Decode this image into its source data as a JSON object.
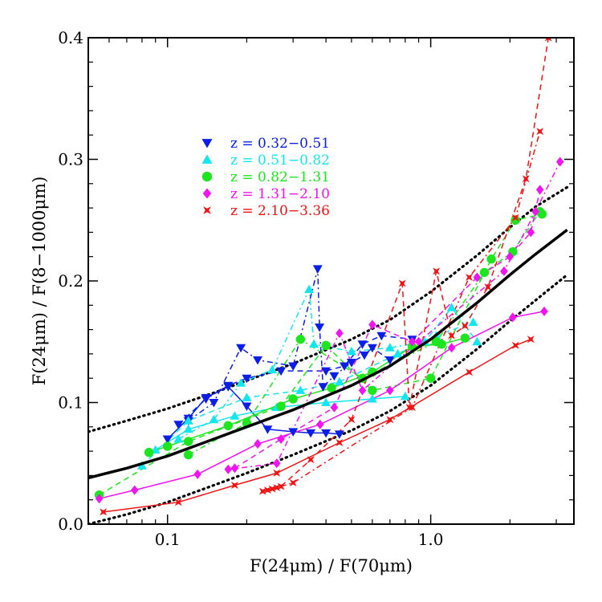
{
  "chart_data": {
    "type": "scatter",
    "xlabel": "F(24μm) / F(70μm)",
    "ylabel": "F(24μm) / F(8−1000μm)",
    "xscale": "log",
    "xlim": [
      0.05,
      3.5
    ],
    "ylim": [
      0.0,
      0.4
    ],
    "xticks": [
      {
        "value": 0.1,
        "label": "0.1"
      },
      {
        "value": 1.0,
        "label": "1.0"
      }
    ],
    "yticks": [
      {
        "value": 0.0,
        "label": "0.0"
      },
      {
        "value": 0.1,
        "label": "0.1"
      },
      {
        "value": 0.2,
        "label": "0.2"
      },
      {
        "value": 0.3,
        "label": "0.3"
      },
      {
        "value": 0.4,
        "label": "0.4"
      }
    ],
    "legend_placement": "upper-left",
    "series": [
      {
        "name": "z = 0.32−0.51",
        "color": "#0a1ee6",
        "marker": "triangle-down",
        "solid": [
          [
            0.1,
            0.07
          ],
          [
            0.12,
            0.087
          ],
          [
            0.14,
            0.104
          ],
          [
            0.17,
            0.113
          ],
          [
            0.2,
            0.097
          ],
          [
            0.24,
            0.078
          ],
          [
            0.3,
            0.076
          ],
          [
            0.35,
            0.075
          ],
          [
            0.4,
            0.075
          ],
          [
            0.45,
            0.074
          ]
        ],
        "dashed": [
          [
            0.11,
            0.082
          ],
          [
            0.14,
            0.103
          ],
          [
            0.17,
            0.114
          ],
          [
            0.2,
            0.12
          ],
          [
            0.27,
            0.126
          ],
          [
            0.4,
            0.126
          ],
          [
            0.47,
            0.13
          ],
          [
            0.55,
            0.148
          ],
          [
            0.65,
            0.155
          ],
          [
            0.85,
            0.152
          ]
        ],
        "dashdot": [
          [
            0.12,
            0.085
          ],
          [
            0.15,
            0.1
          ],
          [
            0.19,
            0.145
          ],
          [
            0.22,
            0.135
          ],
          [
            0.3,
            0.13
          ],
          [
            0.372,
            0.21
          ],
          [
            0.378,
            0.162
          ],
          [
            0.39,
            0.113
          ],
          [
            0.43,
            0.122
          ],
          [
            0.5,
            0.133
          ],
          [
            0.56,
            0.139
          ],
          [
            0.6,
            0.145
          ],
          [
            0.7,
            0.135
          ]
        ]
      },
      {
        "name": "z = 0.51−0.82",
        "color": "#14e6f0",
        "marker": "triangle-up",
        "solid": [
          [
            0.09,
            0.061
          ],
          [
            0.12,
            0.078
          ],
          [
            0.18,
            0.089
          ],
          [
            0.26,
            0.096
          ],
          [
            0.4,
            0.1
          ],
          [
            0.6,
            0.103
          ],
          [
            0.8,
            0.105
          ]
        ],
        "dashed": [
          [
            0.08,
            0.048
          ],
          [
            0.12,
            0.085
          ],
          [
            0.2,
            0.104
          ],
          [
            0.32,
            0.11
          ],
          [
            0.45,
            0.117
          ],
          [
            0.75,
            0.14
          ],
          [
            1.05,
            0.155
          ],
          [
            1.45,
            0.166
          ]
        ],
        "dashdot": [
          [
            0.11,
            0.07
          ],
          [
            0.15,
            0.086
          ],
          [
            0.19,
            0.116
          ],
          [
            0.25,
            0.127
          ],
          [
            0.345,
            0.193
          ],
          [
            0.36,
            0.148
          ],
          [
            0.5,
            0.142
          ],
          [
            0.7,
            0.145
          ],
          [
            0.95,
            0.15
          ],
          [
            1.2,
            0.178
          ],
          [
            1.5,
            0.15
          ]
        ]
      },
      {
        "name": "z = 0.82−1.31",
        "color": "#1ee61e",
        "marker": "circle",
        "solid": [
          [
            0.085,
            0.059
          ],
          [
            0.1,
            0.064
          ],
          [
            0.17,
            0.081
          ],
          [
            0.3,
            0.103
          ],
          [
            0.42,
            0.112
          ],
          [
            0.6,
            0.125
          ],
          [
            0.85,
            0.146
          ],
          [
            1.1,
            0.148
          ],
          [
            1.35,
            0.153
          ]
        ],
        "dashed": [
          [
            0.055,
            0.024
          ],
          [
            0.12,
            0.068
          ],
          [
            0.27,
            0.097
          ],
          [
            0.4,
            0.147
          ],
          [
            0.6,
            0.11
          ],
          [
            1.0,
            0.12
          ],
          [
            1.7,
            0.218
          ],
          [
            2.1,
            0.25
          ],
          [
            2.65,
            0.255
          ]
        ],
        "dashdot": [
          [
            0.12,
            0.057
          ],
          [
            0.2,
            0.083
          ],
          [
            0.32,
            0.152
          ],
          [
            0.55,
            0.12
          ],
          [
            1.05,
            0.15
          ],
          [
            1.6,
            0.207
          ],
          [
            2.05,
            0.224
          ],
          [
            2.6,
            0.257
          ]
        ]
      },
      {
        "name": "z = 1.31−2.10",
        "color": "#f014f0",
        "marker": "diamond",
        "solid": [
          [
            0.055,
            0.021
          ],
          [
            0.075,
            0.028
          ],
          [
            0.13,
            0.041
          ],
          [
            0.22,
            0.066
          ],
          [
            0.38,
            0.082
          ],
          [
            0.7,
            0.11
          ],
          [
            1.2,
            0.145
          ],
          [
            2.05,
            0.17
          ],
          [
            2.7,
            0.175
          ]
        ],
        "dashed": [
          [
            0.18,
            0.046
          ],
          [
            0.27,
            0.07
          ],
          [
            0.43,
            0.096
          ],
          [
            0.6,
            0.164
          ],
          [
            0.85,
            0.15
          ],
          [
            1.5,
            0.203
          ],
          [
            2.0,
            0.22
          ],
          [
            2.4,
            0.24
          ],
          [
            2.6,
            0.275
          ]
        ],
        "dashdot": [
          [
            0.17,
            0.045
          ],
          [
            0.26,
            0.05
          ],
          [
            0.45,
            0.157
          ],
          [
            0.55,
            0.11
          ],
          [
            0.9,
            0.15
          ],
          [
            1.9,
            0.208
          ],
          [
            2.5,
            0.257
          ],
          [
            3.1,
            0.298
          ]
        ]
      },
      {
        "name": "z = 2.10−3.36",
        "color": "#f01414",
        "marker": "star",
        "solid": [
          [
            0.057,
            0.01
          ],
          [
            0.11,
            0.018
          ],
          [
            0.18,
            0.032
          ],
          [
            0.26,
            0.042
          ],
          [
            0.45,
            0.067
          ],
          [
            0.7,
            0.086
          ],
          [
            1.4,
            0.125
          ],
          [
            2.1,
            0.147
          ],
          [
            2.4,
            0.152
          ]
        ],
        "dashed": [
          [
            0.23,
            0.027
          ],
          [
            0.25,
            0.029
          ],
          [
            0.27,
            0.031
          ],
          [
            0.35,
            0.053
          ],
          [
            0.5,
            0.086
          ],
          [
            0.78,
            0.198
          ],
          [
            0.83,
            0.096
          ],
          [
            1.05,
            0.208
          ],
          [
            1.2,
            0.155
          ],
          [
            1.35,
            0.163
          ],
          [
            1.65,
            0.195
          ],
          [
            2.3,
            0.284
          ],
          [
            2.8,
            0.4
          ]
        ],
        "dashdot": [
          [
            0.24,
            0.028
          ],
          [
            0.26,
            0.03
          ],
          [
            0.3,
            0.034
          ],
          [
            0.85,
            0.096
          ],
          [
            1.4,
            0.203
          ],
          [
            2.1,
            0.252
          ],
          [
            2.6,
            0.323
          ]
        ]
      }
    ],
    "model_curve": {
      "style": "thick-solid",
      "x": [
        0.05,
        0.07,
        0.1,
        0.15,
        0.2,
        0.3,
        0.5,
        0.7,
        1.0,
        1.5,
        2.0,
        2.5,
        3.3
      ],
      "y": [
        0.038,
        0.046,
        0.056,
        0.07,
        0.08,
        0.094,
        0.114,
        0.13,
        0.152,
        0.182,
        0.205,
        0.222,
        0.242
      ]
    },
    "model_bounds": [
      {
        "style": "dotted",
        "x": [
          0.05,
          0.07,
          0.1,
          0.15,
          0.2,
          0.3,
          0.5,
          0.7,
          1.0,
          1.5,
          2.0,
          2.5,
          3.3
        ],
        "y": [
          0.076,
          0.085,
          0.095,
          0.108,
          0.118,
          0.132,
          0.152,
          0.168,
          0.191,
          0.221,
          0.244,
          0.261,
          0.277
        ]
      },
      {
        "style": "dotted",
        "x": [
          0.05,
          0.07,
          0.1,
          0.15,
          0.2,
          0.3,
          0.5,
          0.7,
          1.0,
          1.5,
          2.0,
          2.5,
          3.3
        ],
        "y": [
          0.0,
          0.008,
          0.018,
          0.032,
          0.042,
          0.057,
          0.077,
          0.093,
          0.114,
          0.144,
          0.167,
          0.184,
          0.205
        ]
      }
    ]
  }
}
